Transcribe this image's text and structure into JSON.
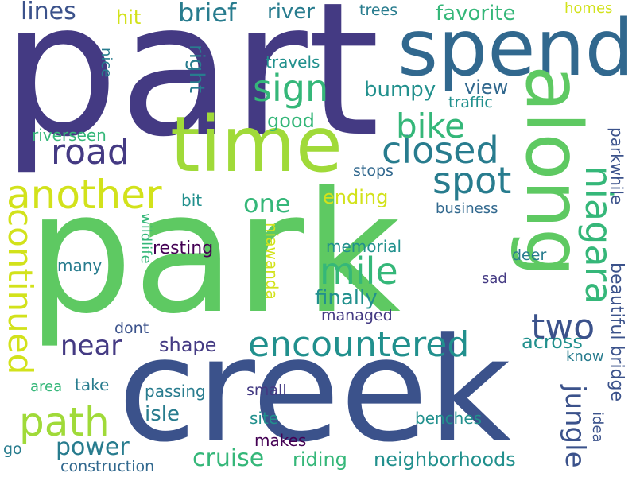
{
  "palette": {
    "purple": "#440154",
    "indigo": "#443a83",
    "blue": "#3b528b",
    "steel": "#31688e",
    "teal": "#287c8e",
    "cyan": "#21908d",
    "green": "#35b779",
    "lime": "#5ec962",
    "yellowgreen": "#a0da39",
    "yellow": "#d2e21b"
  },
  "words": [
    "part",
    "park",
    "creek",
    "spend",
    "time",
    "along",
    "niagara",
    "another",
    "road",
    "closed",
    "sign",
    "bike",
    "spot",
    "mile",
    "encountered",
    "continued",
    "two",
    "path",
    "near",
    "jungle",
    "lines",
    "brief",
    "river",
    "trees",
    "favorite",
    "homes",
    "hit",
    "nice",
    "right",
    "travels",
    "bumpy",
    "view",
    "traffic",
    "good",
    "riverseen",
    "stops",
    "parkwhile",
    "one",
    "ending",
    "bit",
    "business",
    "wildlife",
    "resting",
    "memorial",
    "many",
    "niawanda",
    "deer",
    "finally",
    "sad",
    "managed",
    "dont",
    "shape",
    "across",
    "beautiful bridge",
    "know",
    "idea",
    "area",
    "take",
    "passing",
    "small",
    "isle",
    "site",
    "benches",
    "power",
    "makes",
    "go",
    "cruise",
    "riding",
    "neighborhoods",
    "construction"
  ]
}
